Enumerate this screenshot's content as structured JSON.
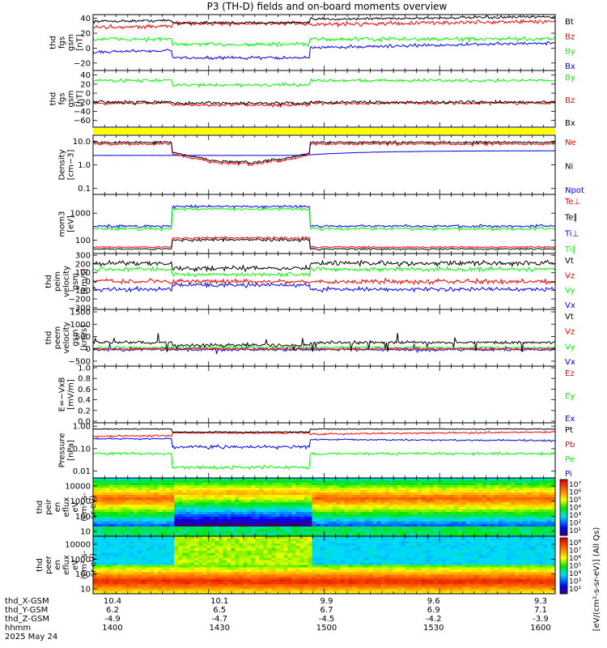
{
  "title": "P3 (TH-D) fields and on-board moments overview",
  "date_label": "2025 May 24",
  "colorbar_label": "[eV/(cm²-s-sr-eV)] (All Qs)",
  "colorbar_ticks": [
    "10⁷",
    "10⁶",
    "10⁵",
    "10⁴",
    "10³",
    "10²",
    "10¹"
  ],
  "colorbar2_ticks": [
    "10⁸",
    "10⁷",
    "10⁶",
    "10⁵",
    "10⁴",
    "10³",
    "10²"
  ],
  "bottom_axis": {
    "row_labels": [
      "thd_X-GSM",
      "thd_Y-GSM",
      "thd_Z-GSM",
      "hhmm"
    ],
    "columns": [
      {
        "x": "10.4",
        "y": "6.2",
        "z": "-4.9",
        "t": "1400"
      },
      {
        "x": "10.1",
        "y": "6.5",
        "z": "-4.7",
        "t": "1430"
      },
      {
        "x": "9.9",
        "y": "6.7",
        "z": "-4.5",
        "t": "1500"
      },
      {
        "x": "9.6",
        "y": "6.9",
        "z": "-4.2",
        "t": "1530"
      },
      {
        "x": "9.3",
        "y": "7.1",
        "z": "-3.9",
        "t": "1600"
      }
    ]
  },
  "chart_data": [
    {
      "type": "line",
      "ylabel": [
        "thd",
        "fgs",
        "gsm",
        "[nT]"
      ],
      "yticks": [
        "40",
        "20",
        "0",
        "−20"
      ],
      "ylim": [
        -30,
        45
      ],
      "series": [
        {
          "name": "Bt",
          "color": "#000000"
        },
        {
          "name": "Bz",
          "color": "#ff0000"
        },
        {
          "name": "By",
          "color": "#00ff00"
        },
        {
          "name": "Bx",
          "color": "#0000ff"
        }
      ]
    },
    {
      "type": "line",
      "ylabel": [
        "thd",
        "fgs",
        "gsm",
        "[nT]"
      ],
      "yticks": [
        "40",
        "20",
        "0",
        "−20",
        "−40",
        "−60"
      ],
      "ylim": [
        -75,
        50
      ],
      "series": [
        {
          "name": "By",
          "color": "#00ff00"
        },
        {
          "name": "Bz",
          "color": "#ff0000"
        },
        {
          "name": "Bx",
          "color": "#000000"
        }
      ]
    },
    {
      "type": "line",
      "ylabel": [
        "Density",
        "[cm−3]"
      ],
      "yticks": [
        "10.0",
        "1.0",
        "0.1"
      ],
      "log": true,
      "series": [
        {
          "name": "Ne",
          "color": "#ff0000"
        },
        {
          "name": "Ni",
          "color": "#000000"
        },
        {
          "name": "Npot",
          "color": "#0000ff"
        }
      ]
    },
    {
      "type": "line",
      "ylabel": [
        "mom3",
        "[eV]"
      ],
      "yticks": [
        "1000",
        "100"
      ],
      "log": true,
      "series": [
        {
          "name": "Te⊥",
          "color": "#ff0000"
        },
        {
          "name": "Te∥",
          "color": "#000000"
        },
        {
          "name": "Ti⊥",
          "color": "#0000ff"
        },
        {
          "name": "Ti∥",
          "color": "#00ff00"
        }
      ]
    },
    {
      "type": "line",
      "ylabel": [
        "thd",
        "peim",
        "velocity",
        "gsm",
        "[km/s]"
      ],
      "yticks": [
        "300",
        "200",
        "100",
        "0",
        "−100",
        "−200",
        "−300"
      ],
      "ylim": [
        -320,
        320
      ],
      "series": [
        {
          "name": "Vt",
          "color": "#000000"
        },
        {
          "name": "Vz",
          "color": "#ff0000"
        },
        {
          "name": "Vy",
          "color": "#00ff00"
        },
        {
          "name": "Vx",
          "color": "#0000ff"
        }
      ]
    },
    {
      "type": "line",
      "ylabel": [
        "thd",
        "peem",
        "velocity",
        "gsm",
        "[km/s]"
      ],
      "yticks": [
        "1500",
        "1000",
        "500",
        "0",
        "−500"
      ],
      "ylim": [
        -700,
        1600
      ],
      "series": [
        {
          "name": "Vt",
          "color": "#000000"
        },
        {
          "name": "Vz",
          "color": "#ff0000"
        },
        {
          "name": "Vy",
          "color": "#00ff00"
        },
        {
          "name": "Vx",
          "color": "#0000ff"
        }
      ]
    },
    {
      "type": "line",
      "ylabel": [
        "E=−VxB",
        "[mV/m]"
      ],
      "yticks": [
        "1.0",
        "0.8",
        "0.6",
        "0.4",
        "0.2",
        "0.0"
      ],
      "ylim": [
        0,
        1
      ],
      "series": [
        {
          "name": "Ez",
          "color": "#ff0000"
        },
        {
          "name": "Ey",
          "color": "#00ff00"
        },
        {
          "name": "Ex",
          "color": "#0000ff"
        }
      ]
    },
    {
      "type": "line",
      "ylabel": [
        "Pressure",
        "[nPa]"
      ],
      "yticks": [
        "1.00",
        "0.10",
        "0.01"
      ],
      "log": true,
      "series": [
        {
          "name": "Pt",
          "color": "#000000"
        },
        {
          "name": "Pb",
          "color": "#ff0000"
        },
        {
          "name": "Pe",
          "color": "#00ff00"
        },
        {
          "name": "Pi",
          "color": "#0000ff"
        }
      ]
    },
    {
      "type": "heatmap",
      "ylabel": [
        "thd",
        "peir",
        "en",
        "eflux",
        "eV",
        "(cm²-s-",
        "sr-eV)"
      ],
      "yticks": [
        "10000",
        "1000",
        "100",
        "10"
      ]
    },
    {
      "type": "heatmap",
      "ylabel": [
        "thd",
        "peer",
        "en",
        "eflux",
        "eV",
        "(cm²-s-",
        "sr-eV)"
      ],
      "yticks": [
        "10000",
        "1000",
        "100",
        "10"
      ]
    }
  ]
}
